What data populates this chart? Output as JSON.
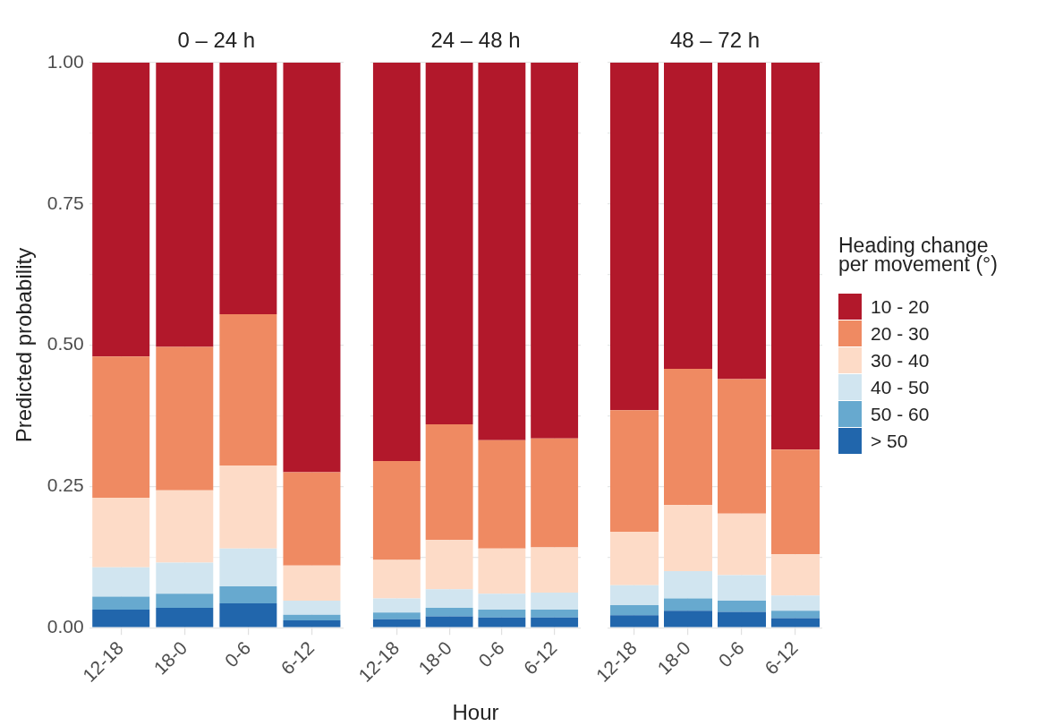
{
  "chart_data": [
    {
      "type": "bar",
      "title": "0 – 24 h",
      "ylabel": "Predicted probability",
      "stacked": true,
      "grid": true,
      "legend": false,
      "categories": [
        "12-18",
        "18-0",
        "0-6",
        "6-12"
      ],
      "ylim": [
        0,
        1
      ],
      "yticks": [
        {
          "value": 0,
          "label": "0.00"
        },
        {
          "value": 0.125,
          "label": null
        },
        {
          "value": 0.25,
          "label": "0.25"
        },
        {
          "value": 0.375,
          "label": null
        },
        {
          "value": 0.5,
          "label": "0.50"
        },
        {
          "value": 0.625,
          "label": null
        },
        {
          "value": 0.75,
          "label": "0.75"
        },
        {
          "value": 0.875,
          "label": null
        },
        {
          "value": 1,
          "label": "1.00"
        }
      ],
      "series": [
        {
          "color": "#2166ac",
          "values": [
            0.032,
            0.035,
            0.043,
            0.013
          ]
        },
        {
          "color": "#67a9cf",
          "values": [
            0.023,
            0.025,
            0.03,
            0.01
          ]
        },
        {
          "color": "#d1e5f0",
          "values": [
            0.052,
            0.055,
            0.067,
            0.025
          ]
        },
        {
          "color": "#fddbc7",
          "values": [
            0.123,
            0.128,
            0.147,
            0.062
          ]
        },
        {
          "color": "#ef8a62",
          "values": [
            0.25,
            0.254,
            0.268,
            0.165
          ]
        },
        {
          "color": "#b2182b",
          "values": [
            0.52,
            0.503,
            0.445,
            0.725
          ]
        }
      ]
    },
    {
      "type": "bar",
      "title": "24 – 48 h",
      "xlabel": "Hour",
      "stacked": true,
      "grid": true,
      "legend": false,
      "tick_labels": "x",
      "categories": [
        "12-18",
        "18-0",
        "0-6",
        "6-12"
      ],
      "ylim": [
        0,
        1
      ],
      "yticks": [
        0,
        0.125,
        0.25,
        0.375,
        0.5,
        0.625,
        0.75,
        0.875,
        1
      ],
      "series": [
        {
          "color": "#2166ac",
          "values": [
            0.015,
            0.02,
            0.018,
            0.018
          ]
        },
        {
          "color": "#67a9cf",
          "values": [
            0.012,
            0.015,
            0.014,
            0.014
          ]
        },
        {
          "color": "#d1e5f0",
          "values": [
            0.025,
            0.033,
            0.028,
            0.03
          ]
        },
        {
          "color": "#fddbc7",
          "values": [
            0.068,
            0.087,
            0.08,
            0.08
          ]
        },
        {
          "color": "#ef8a62",
          "values": [
            0.175,
            0.205,
            0.192,
            0.193
          ]
        },
        {
          "color": "#b2182b",
          "values": [
            0.705,
            0.64,
            0.668,
            0.665
          ]
        }
      ]
    },
    {
      "type": "bar",
      "title": "48 – 72 h",
      "legend_title": "Heading change per movement (°)",
      "stacked": true,
      "grid": true,
      "legend": "right",
      "tick_labels": "x",
      "categories": [
        "12-18",
        "18-0",
        "0-6",
        "6-12"
      ],
      "ylim": [
        0,
        1
      ],
      "yticks": [
        0,
        0.125,
        0.25,
        0.375,
        0.5,
        0.625,
        0.75,
        0.875,
        1
      ],
      "series": [
        {
          "name": "> 50",
          "color": "#2166ac",
          "values": [
            0.022,
            0.03,
            0.028,
            0.017
          ]
        },
        {
          "name": "50 - 60",
          "color": "#67a9cf",
          "values": [
            0.018,
            0.022,
            0.02,
            0.013
          ]
        },
        {
          "name": "40 - 50",
          "color": "#d1e5f0",
          "values": [
            0.035,
            0.048,
            0.045,
            0.027
          ]
        },
        {
          "name": "30 - 40",
          "color": "#fddbc7",
          "values": [
            0.095,
            0.117,
            0.109,
            0.073
          ]
        },
        {
          "name": "20 - 30",
          "color": "#ef8a62",
          "values": [
            0.215,
            0.241,
            0.238,
            0.185
          ]
        },
        {
          "name": "10 - 20",
          "color": "#b2182b",
          "values": [
            0.615,
            0.542,
            0.56,
            0.685
          ]
        }
      ]
    }
  ]
}
